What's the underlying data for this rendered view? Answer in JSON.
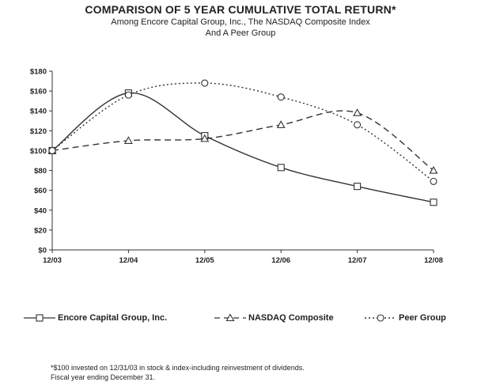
{
  "title": "COMPARISON OF 5 YEAR CUMULATIVE TOTAL RETURN*",
  "subtitle_line1": "Among Encore Capital Group, Inc., The NASDAQ Composite Index",
  "subtitle_line2": "And A Peer Group",
  "footnote_line1": "*$100 invested on 12/31/03 in stock & index-including reinvestment of dividends.",
  "footnote_line2": "Fiscal year ending December 31.",
  "chart_data": {
    "type": "line",
    "x": [
      "12/03",
      "12/04",
      "12/05",
      "12/06",
      "12/07",
      "12/08"
    ],
    "ylim": [
      0,
      180
    ],
    "yticks": [
      0,
      20,
      40,
      60,
      80,
      100,
      120,
      140,
      160,
      180
    ],
    "ytick_labels": [
      "$0",
      "$20",
      "$40",
      "$60",
      "$80",
      "$100",
      "$120",
      "$140",
      "$160",
      "$180"
    ],
    "grid": false,
    "legend_position": "bottom",
    "series": [
      {
        "name": "Encore Capital Group, Inc.",
        "values": [
          100,
          158,
          115,
          83,
          64,
          48
        ],
        "marker": "square",
        "dash": "solid",
        "color": "#333333"
      },
      {
        "name": "NASDAQ Composite",
        "values": [
          100,
          110,
          112,
          126,
          138,
          80
        ],
        "marker": "triangle",
        "dash": "dashed",
        "color": "#333333"
      },
      {
        "name": "Peer Group",
        "values": [
          100,
          156,
          168,
          154,
          126,
          69
        ],
        "marker": "circle",
        "dash": "dotted",
        "color": "#333333"
      }
    ]
  }
}
